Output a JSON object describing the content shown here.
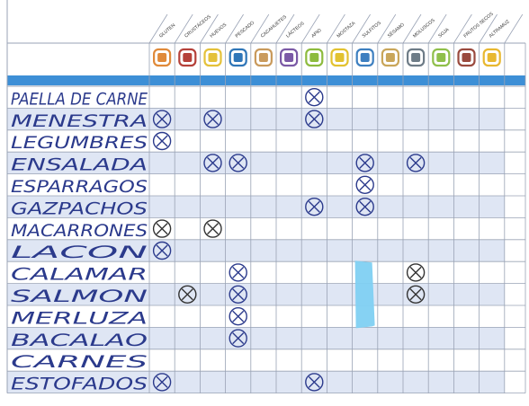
{
  "allergens": [
    {
      "name": "GLUTEN",
      "color": "#e08a3a"
    },
    {
      "name": "CRUSTÁCEOS",
      "color": "#b5413a"
    },
    {
      "name": "HUEVOS",
      "color": "#e4c13a"
    },
    {
      "name": "PESCADO",
      "color": "#2f76b8"
    },
    {
      "name": "CACAHUETES",
      "color": "#c99a5c"
    },
    {
      "name": "LÁCTEOS",
      "color": "#7b5aa6"
    },
    {
      "name": "APIO",
      "color": "#8dbb3e"
    },
    {
      "name": "MOSTAZA",
      "color": "#e2c230"
    },
    {
      "name": "SULFITOS",
      "color": "#3d7fc0"
    },
    {
      "name": "SÉSAMO",
      "color": "#c9a65a"
    },
    {
      "name": "MOLUSCOS",
      "color": "#6e7c87"
    },
    {
      "name": "SOJA",
      "color": "#8fbf4a"
    },
    {
      "name": "FRUTOS SECOS",
      "color": "#9a4a3e"
    },
    {
      "name": "ALTRAMUZ",
      "color": "#e8b830"
    }
  ],
  "dishes": [
    {
      "name": "PAELLA DE CARNE",
      "marks": [
        6
      ]
    },
    {
      "name": "MENESTRA",
      "marks": [
        0,
        2,
        6
      ]
    },
    {
      "name": "LEGUMBRES",
      "marks": [
        0
      ]
    },
    {
      "name": "ENSALADA",
      "marks": [
        2,
        3,
        8,
        10
      ]
    },
    {
      "name": "ESPARRAGOS",
      "marks": [
        8
      ]
    },
    {
      "name": "GAZPACHOS",
      "marks": [
        6,
        8
      ]
    },
    {
      "name": "MACARRONES",
      "marks": [
        0,
        2
      ]
    },
    {
      "name": "LACON",
      "marks": [
        0
      ]
    },
    {
      "name": "CALAMAR",
      "marks": [
        3,
        10
      ]
    },
    {
      "name": "SALMON",
      "marks": [
        1,
        3,
        10
      ]
    },
    {
      "name": "MERLUZA",
      "marks": [
        3
      ]
    },
    {
      "name": "BACALAO",
      "marks": [
        3
      ]
    },
    {
      "name": "CARNES",
      "marks": []
    },
    {
      "name": "ESTOFADOS",
      "marks": [
        0,
        6
      ]
    }
  ],
  "colors": {
    "ink": "#2b3a8c",
    "dark_ink": "#333333",
    "band": "#3d8fd6",
    "stripe": "#dfe6f4",
    "grid": "#9aa3b5",
    "correction": "#7fd0f2"
  }
}
